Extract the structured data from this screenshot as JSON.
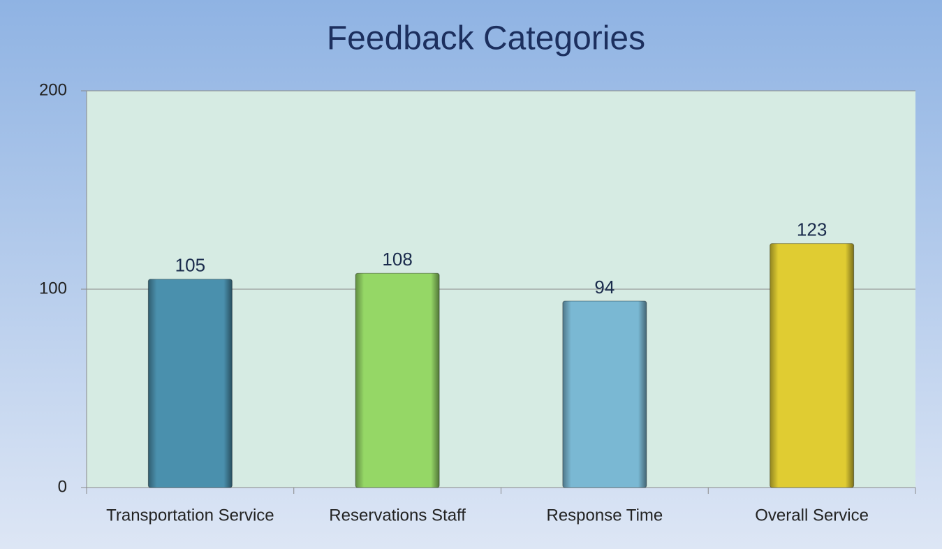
{
  "chart_data": {
    "type": "bar",
    "title": "Feedback Categories",
    "categories": [
      "Transportation Service",
      "Reservations Staff",
      "Response Time",
      "Overall Service"
    ],
    "values": [
      105,
      108,
      94,
      123
    ],
    "colors": [
      "#4a90ad",
      "#95d766",
      "#7ab8d3",
      "#e0cc32"
    ],
    "ylim": [
      0,
      200
    ],
    "yticks": [
      0,
      100,
      200
    ],
    "grid": true
  }
}
